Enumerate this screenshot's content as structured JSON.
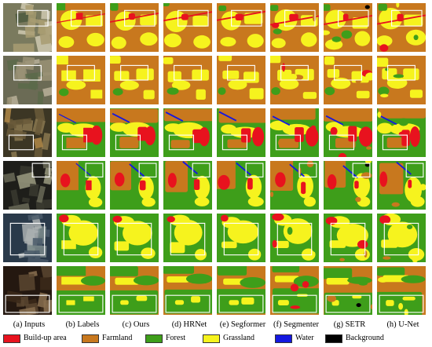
{
  "columns": [
    "(a) Inputs",
    "(b) Labels",
    "(c) Ours",
    "(d) HRNet",
    "(e) Segformer",
    "(f) Segmenter",
    "(g) SETR",
    "(h) U-Net"
  ],
  "legend": [
    {
      "label": "Build-up area",
      "color": "#e8121e"
    },
    {
      "label": "Farmland",
      "color": "#c8781e"
    },
    {
      "label": "Forest",
      "color": "#3e9e1a"
    },
    {
      "label": "Grassland",
      "color": "#f6f31e"
    },
    {
      "label": "Water",
      "color": "#1418e0"
    },
    {
      "label": "Background",
      "color": "#000000"
    }
  ],
  "colors": {
    "farmland": "#c8781e",
    "forest": "#3e9e1a",
    "grassland": "#f6f31e",
    "buildup": "#e8121e",
    "water": "#1418e0",
    "background": "#000000",
    "box": "#ffffff"
  }
}
